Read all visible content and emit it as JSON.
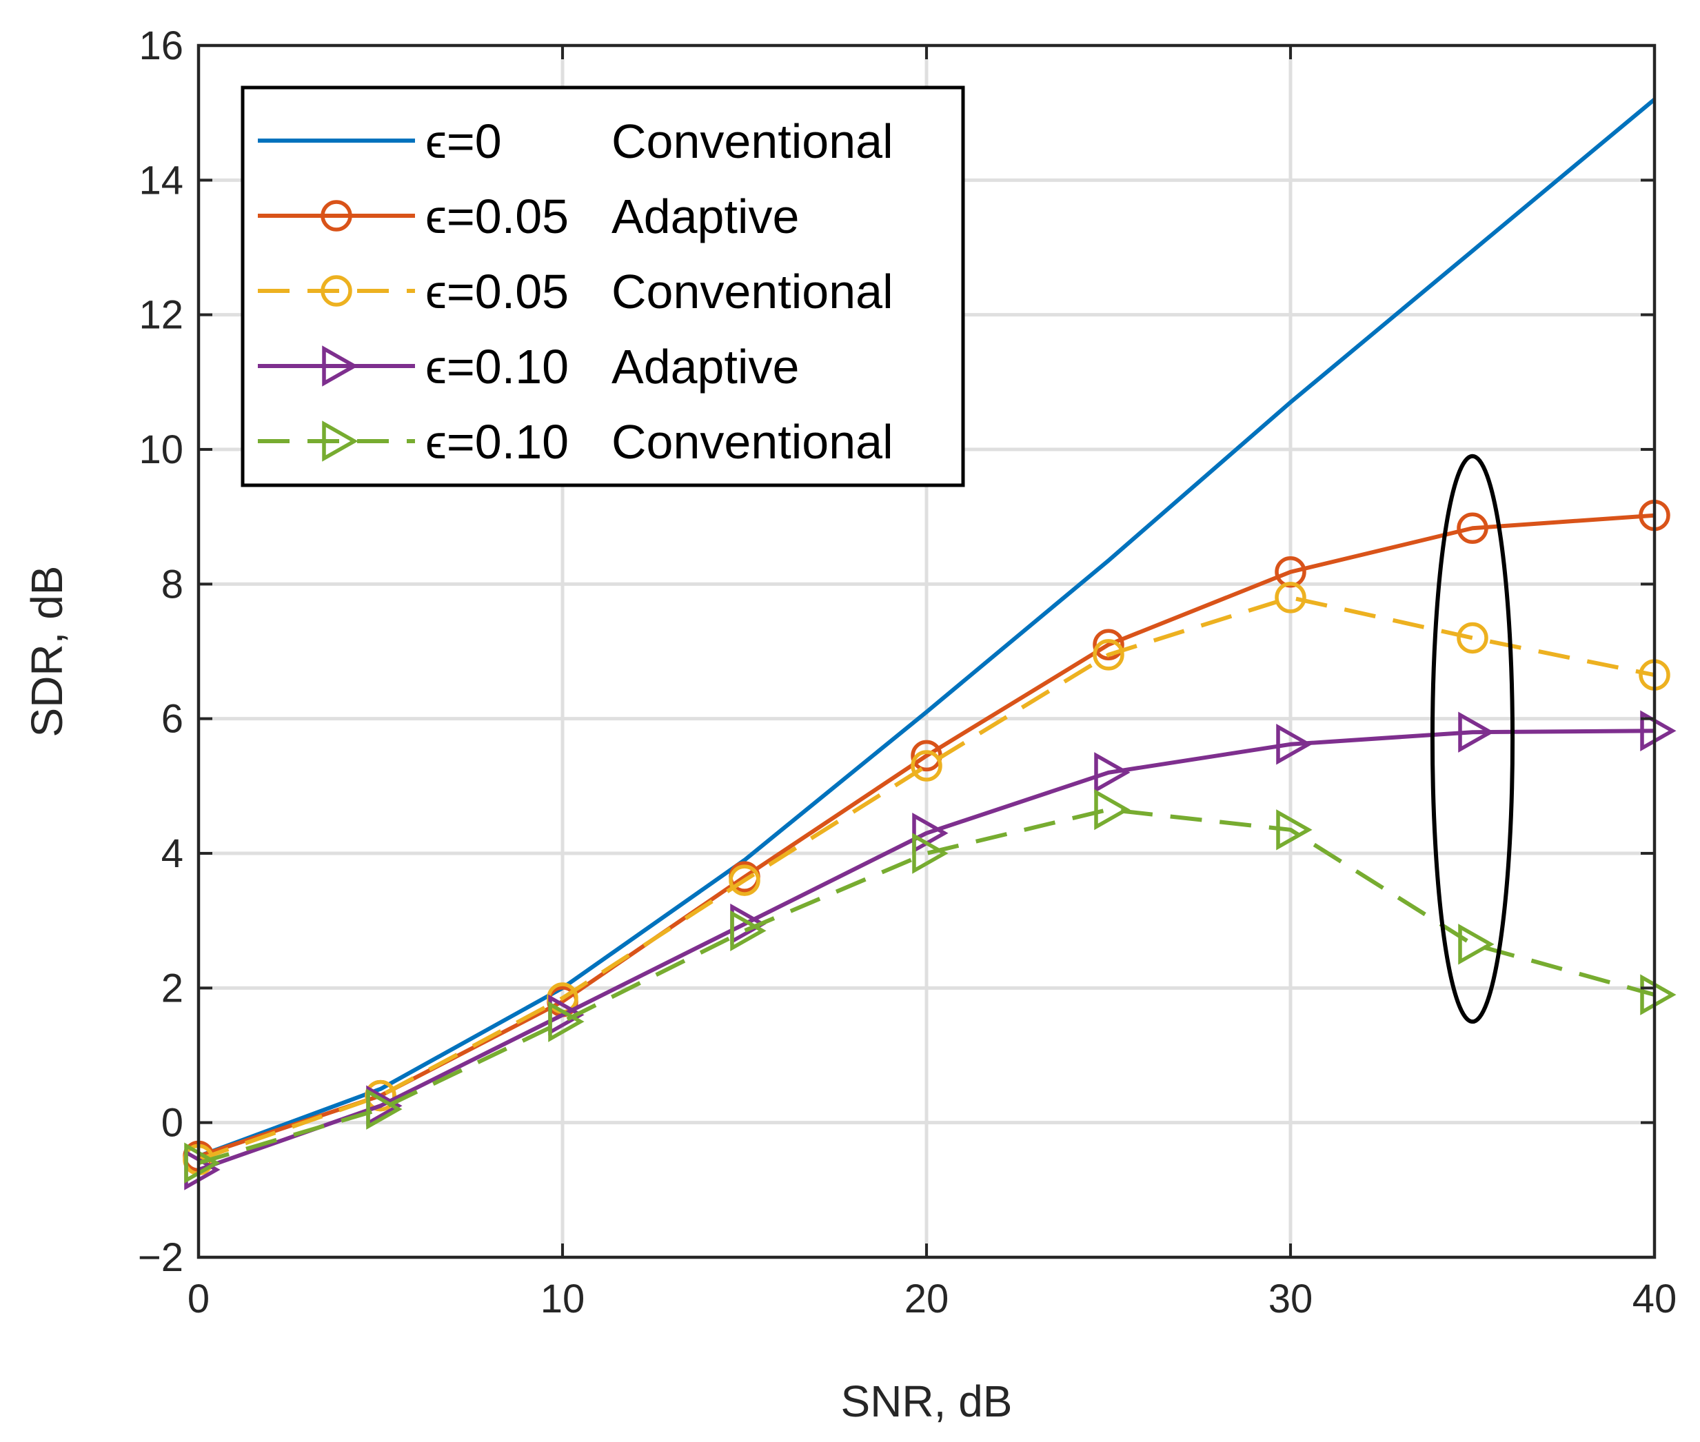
{
  "chart_data": {
    "type": "line",
    "title": "",
    "xlabel": "SNR, dB",
    "ylabel": "SDR, dB",
    "xlim": [
      0,
      40
    ],
    "ylim": [
      -2,
      16
    ],
    "xticks": [
      0,
      10,
      20,
      30,
      40
    ],
    "xtick_labels": [
      "0",
      "10",
      "20",
      "30",
      "40"
    ],
    "yticks": [
      -2,
      0,
      2,
      4,
      6,
      8,
      10,
      12,
      14,
      16
    ],
    "ytick_labels": [
      "−2",
      "0",
      "2",
      "4",
      "6",
      "8",
      "10",
      "12",
      "14",
      "16"
    ],
    "grid": true,
    "legend_position": "top-left",
    "series": [
      {
        "name": "ϵ=0",
        "legend_desc": "Conventional",
        "color": "#0072BD",
        "dash": "solid",
        "marker": "none",
        "x": [
          0,
          5,
          10,
          15,
          20,
          25,
          30,
          35,
          40
        ],
        "y": [
          -0.5,
          0.5,
          2.0,
          3.9,
          6.1,
          8.35,
          10.7,
          12.95,
          15.2
        ]
      },
      {
        "name": "ϵ=0.05",
        "legend_desc": "Adaptive",
        "color": "#D95319",
        "dash": "solid",
        "marker": "circle",
        "x": [
          0,
          5,
          10,
          15,
          20,
          25,
          30,
          35,
          40
        ],
        "y": [
          -0.5,
          0.4,
          1.8,
          3.65,
          5.45,
          7.1,
          8.18,
          8.83,
          9.02
        ]
      },
      {
        "name": "ϵ=0.05",
        "legend_desc": "Conventional",
        "color": "#EDB120",
        "dash": "dashed",
        "marker": "circle",
        "x": [
          0,
          5,
          10,
          15,
          20,
          25,
          30,
          35,
          40
        ],
        "y": [
          -0.55,
          0.4,
          1.85,
          3.6,
          5.3,
          6.95,
          7.8,
          7.2,
          6.65
        ]
      },
      {
        "name": "ϵ=0.10",
        "legend_desc": "Adaptive",
        "color": "#7E2F8E",
        "dash": "solid",
        "marker": "triangle-right",
        "x": [
          0,
          5,
          10,
          15,
          20,
          25,
          30,
          35,
          40
        ],
        "y": [
          -0.7,
          0.25,
          1.6,
          2.95,
          4.3,
          5.2,
          5.62,
          5.8,
          5.82
        ]
      },
      {
        "name": "ϵ=0.10",
        "legend_desc": "Conventional",
        "color": "#77AC30",
        "dash": "dashed",
        "marker": "triangle-right",
        "x": [
          0,
          5,
          10,
          15,
          20,
          25,
          30,
          35,
          40
        ],
        "y": [
          -0.6,
          0.2,
          1.5,
          2.85,
          4.0,
          4.65,
          4.35,
          2.65,
          1.9
        ]
      }
    ],
    "annotations": [
      {
        "type": "ellipse",
        "color": "#000000",
        "center_x": 35,
        "center_y": 5.7,
        "radius_x": 1.1,
        "radius_y": 4.2
      }
    ]
  }
}
